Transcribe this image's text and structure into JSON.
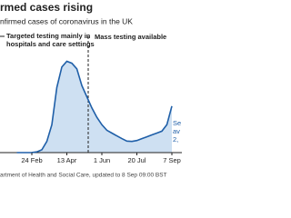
{
  "chart_data": {
    "type": "line",
    "title": "rmed cases rising",
    "subtitle": "nfirmed cases of coronavirus in the UK",
    "annotations": [
      "Targeted testing mainly in",
      "hospitals and care settings",
      "Mass testing available",
      "Se",
      "av",
      "2,"
    ],
    "source": "artment of Health and Social Care, updated to 8 Sep 09:00 BST",
    "categories": [
      null,
      null,
      null,
      "24 Feb",
      null,
      null,
      null,
      null,
      null,
      null,
      "13 Apr",
      null,
      null,
      null,
      null,
      null,
      null,
      "1 Jun",
      null,
      null,
      null,
      null,
      null,
      null,
      "20 Jul",
      null,
      null,
      null,
      null,
      null,
      null,
      "7 Sep"
    ],
    "values": [
      0,
      0,
      0,
      5,
      40,
      150,
      600,
      1500,
      3500,
      4600,
      4900,
      4800,
      4500,
      3600,
      3000,
      2400,
      1900,
      1500,
      1200,
      1050,
      900,
      750,
      620,
      600,
      650,
      750,
      850,
      950,
      1050,
      1150,
      1500,
      2500
    ],
    "color": "#1f5fa8",
    "ylim": [
      0,
      6000
    ]
  }
}
